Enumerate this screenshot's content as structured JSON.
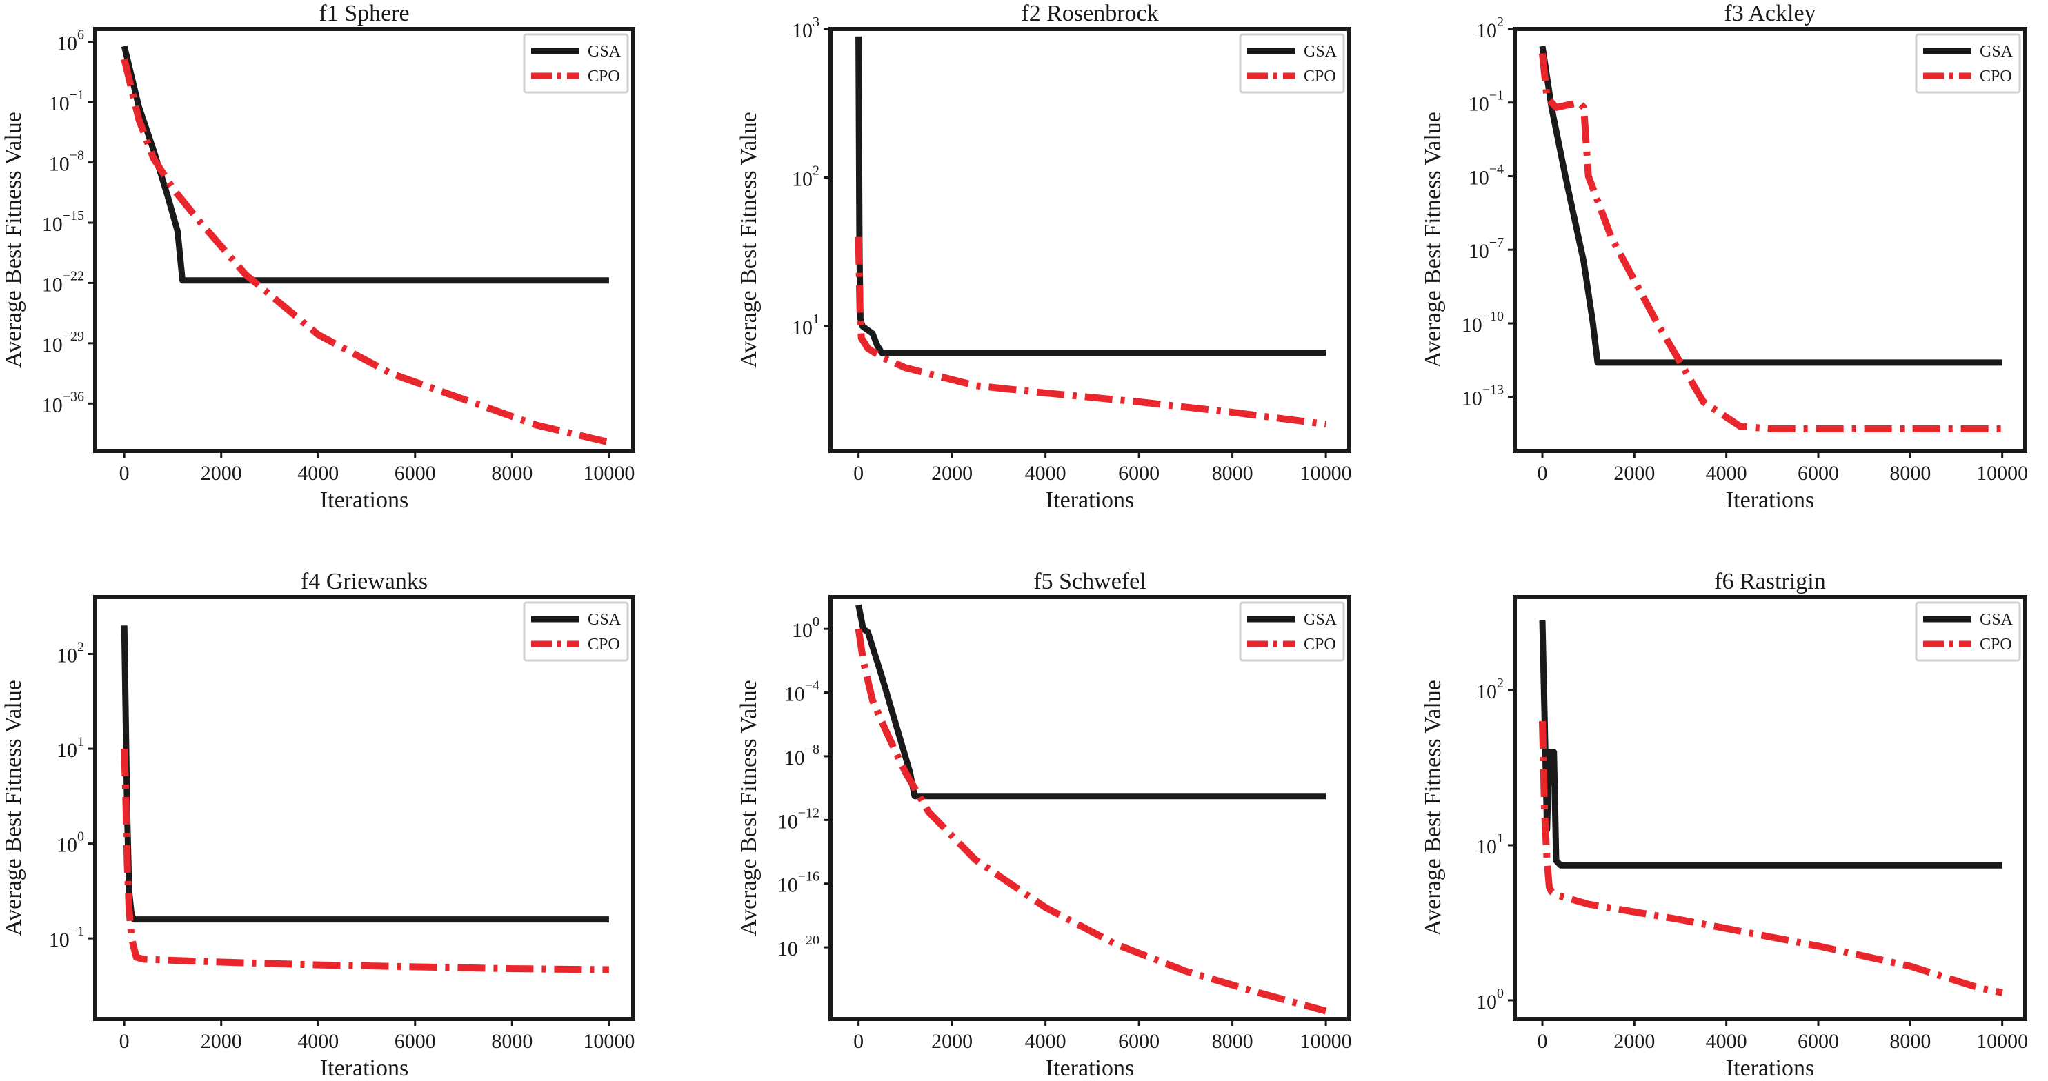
{
  "colors": {
    "gsa": "#1a1a1a",
    "cpo": "#e8262c",
    "frame": "#1a1a1a"
  },
  "chart_data": [
    {
      "type": "line",
      "title": "f1 Sphere",
      "xlabel": "Iterations",
      "ylabel": "Average Best Fitness Value",
      "yscale": "log",
      "xlim": [
        -600,
        10500
      ],
      "ylim_exp": [
        -41.5,
        7.5
      ],
      "xticks": [
        0,
        2000,
        4000,
        6000,
        8000,
        10000
      ],
      "yticks": [
        {
          "base": "10",
          "exp": "6"
        },
        {
          "base": "10",
          "exp": "−1"
        },
        {
          "base": "10",
          "exp": "−8"
        },
        {
          "base": "10",
          "exp": "−15"
        },
        {
          "base": "10",
          "exp": "−22"
        },
        {
          "base": "10",
          "exp": "−29"
        },
        {
          "base": "10",
          "exp": "−36"
        }
      ],
      "ytick_exps": [
        6,
        -1,
        -8,
        -15,
        -22,
        -29,
        -36
      ],
      "legend": "top-right",
      "series": [
        {
          "name": "GSA",
          "style": "solid",
          "x": [
            0,
            300,
            600,
            900,
            1100,
            1200,
            10000
          ],
          "log10_y": [
            5.5,
            -1.5,
            -6.5,
            -12,
            -16,
            -21.7,
            -21.7
          ]
        },
        {
          "name": "CPO",
          "style": "dashdot",
          "x": [
            0,
            300,
            600,
            1000,
            1500,
            2500,
            4000,
            5500,
            7000,
            8500,
            10000
          ],
          "log10_y": [
            4,
            -3,
            -7.5,
            -11,
            -14.5,
            -21,
            -28,
            -32.5,
            -35.5,
            -38.5,
            -40.5
          ]
        }
      ]
    },
    {
      "type": "line",
      "title": "f2 Rosenbrock",
      "xlabel": "Iterations",
      "ylabel": "Average Best Fitness Value",
      "yscale": "log",
      "xlim": [
        -600,
        10500
      ],
      "ylim_exp": [
        0.16,
        3.0
      ],
      "xticks": [
        0,
        2000,
        4000,
        6000,
        8000,
        10000
      ],
      "yticks": [
        {
          "base": "10",
          "exp": "3"
        },
        {
          "base": "10",
          "exp": "2"
        },
        {
          "base": "10",
          "exp": "1"
        }
      ],
      "ytick_exps": [
        3,
        2,
        1
      ],
      "legend": "top-right",
      "series": [
        {
          "name": "GSA",
          "style": "solid",
          "x": [
            0,
            20,
            40,
            80,
            120,
            300,
            400,
            500,
            10000
          ],
          "log10_y": [
            2.95,
            1.5,
            1.05,
            1.0,
            0.99,
            0.95,
            0.87,
            0.82,
            0.82
          ]
        },
        {
          "name": "CPO",
          "style": "dashdot",
          "x": [
            0,
            30,
            60,
            200,
            500,
            1000,
            2500,
            4000,
            6000,
            8000,
            10000
          ],
          "log10_y": [
            1.6,
            1.1,
            0.92,
            0.85,
            0.79,
            0.72,
            0.6,
            0.55,
            0.49,
            0.42,
            0.34
          ]
        }
      ]
    },
    {
      "type": "line",
      "title": "f3 Ackley",
      "xlabel": "Iterations",
      "ylabel": "Average Best Fitness Value",
      "yscale": "log",
      "xlim": [
        -600,
        10500
      ],
      "ylim_exp": [
        -15.2,
        2.0
      ],
      "xticks": [
        0,
        2000,
        4000,
        6000,
        8000,
        10000
      ],
      "yticks": [
        {
          "base": "10",
          "exp": "2"
        },
        {
          "base": "10",
          "exp": "−1"
        },
        {
          "base": "10",
          "exp": "−4"
        },
        {
          "base": "10",
          "exp": "−7"
        },
        {
          "base": "10",
          "exp": "−10"
        },
        {
          "base": "10",
          "exp": "−13"
        }
      ],
      "ytick_exps": [
        2,
        -1,
        -4,
        -7,
        -10,
        -13
      ],
      "legend": "top-right",
      "series": [
        {
          "name": "GSA",
          "style": "solid",
          "x": [
            0,
            200,
            500,
            900,
            1100,
            1200,
            10000
          ],
          "log10_y": [
            1.3,
            -1.2,
            -4,
            -7.5,
            -10,
            -11.6,
            -11.6
          ]
        },
        {
          "name": "CPO",
          "style": "dashdot",
          "x": [
            0,
            100,
            300,
            800,
            900,
            1000,
            1500,
            2500,
            3500,
            4300,
            5000,
            10000
          ],
          "log10_y": [
            1,
            -0.8,
            -1.2,
            -1.0,
            -1.2,
            -4,
            -6.5,
            -10,
            -13.2,
            -14.2,
            -14.3,
            -14.3
          ]
        }
      ]
    },
    {
      "type": "line",
      "title": "f4 Griewanks",
      "xlabel": "Iterations",
      "ylabel": "Average Best Fitness Value",
      "yscale": "log",
      "xlim": [
        -600,
        10500
      ],
      "ylim_exp": [
        -1.85,
        2.6
      ],
      "xticks": [
        0,
        2000,
        4000,
        6000,
        8000,
        10000
      ],
      "yticks": [
        {
          "base": "10",
          "exp": "2"
        },
        {
          "base": "10",
          "exp": "1"
        },
        {
          "base": "10",
          "exp": "0"
        },
        {
          "base": "10",
          "exp": "−1"
        }
      ],
      "ytick_exps": [
        2,
        1,
        0,
        -1
      ],
      "legend": "top-right",
      "series": [
        {
          "name": "GSA",
          "style": "solid",
          "x": [
            0,
            30,
            60,
            100,
            150,
            200,
            10000
          ],
          "log10_y": [
            2.3,
            1.3,
            0.3,
            -0.5,
            -0.75,
            -0.8,
            -0.8
          ]
        },
        {
          "name": "CPO",
          "style": "dashdot",
          "x": [
            0,
            30,
            60,
            100,
            150,
            250,
            400,
            2000,
            4000,
            6000,
            8000,
            10000
          ],
          "log10_y": [
            1.0,
            0.5,
            -0.2,
            -0.7,
            -1.0,
            -1.2,
            -1.22,
            -1.25,
            -1.28,
            -1.3,
            -1.32,
            -1.33
          ]
        }
      ]
    },
    {
      "type": "line",
      "title": "f5 Schwefel",
      "xlabel": "Iterations",
      "ylabel": "Average Best Fitness Value",
      "yscale": "log",
      "xlim": [
        -600,
        10500
      ],
      "ylim_exp": [
        -24.5,
        2.0
      ],
      "xticks": [
        0,
        2000,
        4000,
        6000,
        8000,
        10000
      ],
      "yticks": [
        {
          "base": "10",
          "exp": "0"
        },
        {
          "base": "10",
          "exp": "−4"
        },
        {
          "base": "10",
          "exp": "−8"
        },
        {
          "base": "10",
          "exp": "−12"
        },
        {
          "base": "10",
          "exp": "−16"
        },
        {
          "base": "10",
          "exp": "−20"
        }
      ],
      "ytick_exps": [
        0,
        -4,
        -8,
        -12,
        -16,
        -20
      ],
      "legend": "top-right",
      "series": [
        {
          "name": "GSA",
          "style": "solid",
          "x": [
            0,
            100,
            200,
            500,
            900,
            1100,
            1200,
            10000
          ],
          "log10_y": [
            1.5,
            0,
            -0.2,
            -3,
            -7,
            -9,
            -10.5,
            -10.5
          ]
        },
        {
          "name": "CPO",
          "style": "dashdot",
          "x": [
            0,
            100,
            300,
            600,
            1000,
            1500,
            2500,
            4000,
            5500,
            7000,
            8500,
            10000
          ],
          "log10_y": [
            0,
            -2,
            -4.5,
            -6.5,
            -9,
            -11.5,
            -14.5,
            -17.5,
            -19.8,
            -21.5,
            -22.8,
            -24
          ]
        }
      ]
    },
    {
      "type": "line",
      "title": "f6 Rastrigin",
      "xlabel": "Iterations",
      "ylabel": "Average Best Fitness Value",
      "yscale": "log",
      "xlim": [
        -600,
        10500
      ],
      "ylim_exp": [
        -0.12,
        2.6
      ],
      "xticks": [
        0,
        2000,
        4000,
        6000,
        8000,
        10000
      ],
      "yticks": [
        {
          "base": "10",
          "exp": "2"
        },
        {
          "base": "10",
          "exp": "1"
        },
        {
          "base": "10",
          "exp": "0"
        }
      ],
      "ytick_exps": [
        2,
        1,
        0
      ],
      "legend": "top-right",
      "series": [
        {
          "name": "GSA",
          "style": "solid",
          "x": [
            0,
            50,
            100,
            150,
            250,
            300,
            400,
            10000
          ],
          "log10_y": [
            2.45,
            1.8,
            1.1,
            1.6,
            1.6,
            0.9,
            0.87,
            0.87
          ]
        },
        {
          "name": "CPO",
          "style": "dashdot",
          "x": [
            0,
            50,
            100,
            150,
            200,
            300,
            1000,
            3000,
            6000,
            8000,
            9500,
            10000
          ],
          "log10_y": [
            1.8,
            1.2,
            0.9,
            0.73,
            0.7,
            0.68,
            0.62,
            0.52,
            0.35,
            0.22,
            0.08,
            0.05
          ]
        }
      ]
    }
  ]
}
